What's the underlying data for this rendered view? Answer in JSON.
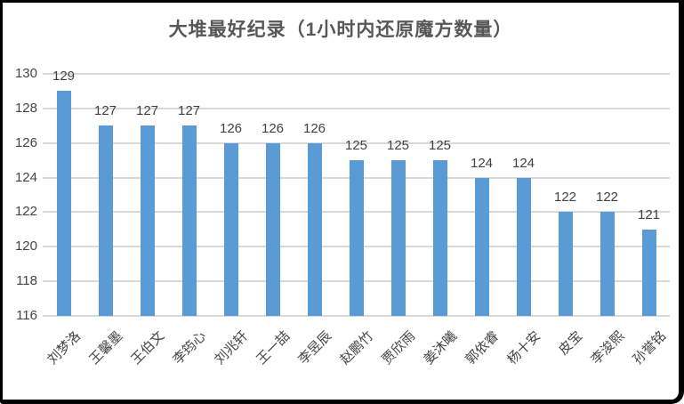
{
  "frame": {
    "background": "#ffffff",
    "border_color": "#000000"
  },
  "chart_data": {
    "type": "bar",
    "title": "大堆最好纪录（1小时内还原魔方数量）",
    "categories": [
      "刘梦洛",
      "王馨墨",
      "王伯文",
      "李筠心",
      "刘兆轩",
      "王一喆",
      "李昱辰",
      "赵鹏竹",
      "贾欣雨",
      "姜沐曦",
      "郭依睿",
      "杨十安",
      "皮宝",
      "李浚熙",
      "孙誉铭"
    ],
    "values": [
      129,
      127,
      127,
      127,
      126,
      126,
      126,
      125,
      125,
      125,
      124,
      124,
      122,
      122,
      121
    ],
    "data_labels": [
      129,
      127,
      127,
      127,
      126,
      126,
      126,
      125,
      125,
      125,
      124,
      124,
      122,
      122,
      121
    ],
    "xlabel": "",
    "ylabel": "",
    "ylim": [
      116,
      130
    ],
    "yticks": [
      116,
      118,
      120,
      122,
      124,
      126,
      128,
      130
    ],
    "grid": true,
    "legend_position": "none",
    "bar_color": "#5b9bd5",
    "gridline_color": "#d9d9d9",
    "label_color": "#404040",
    "title_color": "#575757",
    "x_label_rotation_deg": 45
  }
}
